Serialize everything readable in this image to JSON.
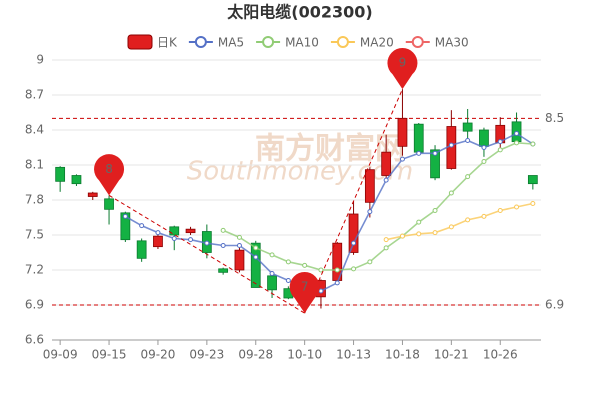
{
  "chart_data": {
    "type": "candlestick",
    "title": "太阳电缆(002300)",
    "watermark": [
      "南方财富网",
      "Southmoney.com"
    ],
    "categories": [
      "09-09",
      null,
      null,
      "09-15",
      null,
      null,
      "09-20",
      null,
      null,
      "09-23",
      null,
      null,
      "09-28",
      null,
      null,
      "10-10",
      null,
      null,
      "10-13",
      null,
      null,
      "10-18",
      null,
      null,
      "10-21",
      null,
      null,
      "10-26",
      null,
      null
    ],
    "candles": {
      "name": "日K",
      "up_color": "#e01f1f",
      "down_color": "#14b143",
      "open": [
        8.08,
        8.01,
        7.83,
        7.81,
        7.69,
        7.45,
        7.4,
        7.57,
        7.52,
        7.53,
        7.21,
        7.2,
        7.43,
        7.15,
        7.04,
        7.03,
        6.97,
        7.11,
        7.35,
        7.78,
        8.01,
        8.26,
        8.45,
        8.23,
        8.07,
        8.46,
        8.4,
        8.29,
        8.47,
        8.01
      ],
      "high": [
        8.09,
        8.02,
        7.87,
        7.84,
        7.7,
        7.47,
        7.5,
        7.58,
        7.57,
        7.59,
        7.22,
        7.42,
        7.45,
        7.17,
        7.06,
        7.08,
        7.12,
        7.44,
        7.79,
        8.08,
        8.36,
        8.75,
        8.46,
        8.27,
        8.57,
        8.58,
        8.42,
        8.51,
        8.55,
        8.01
      ],
      "low": [
        7.87,
        7.92,
        7.8,
        7.59,
        7.44,
        7.27,
        7.38,
        7.37,
        7.5,
        7.3,
        7.16,
        7.18,
        7.05,
        6.96,
        6.95,
        6.83,
        6.87,
        7.08,
        7.33,
        7.65,
        7.98,
        8.18,
        8.2,
        7.97,
        8.06,
        8.31,
        8.17,
        8.24,
        8.29,
        7.89
      ],
      "close": [
        7.96,
        7.94,
        7.86,
        7.72,
        7.46,
        7.3,
        7.49,
        7.5,
        7.55,
        7.35,
        7.18,
        7.37,
        7.05,
        7.03,
        6.96,
        6.98,
        7.11,
        7.43,
        7.68,
        8.06,
        8.21,
        8.5,
        8.21,
        7.99,
        8.43,
        8.39,
        8.26,
        8.44,
        8.3,
        7.94
      ]
    },
    "series": [
      {
        "name": "MA5",
        "color": "#5470c6",
        "values": [
          null,
          null,
          null,
          null,
          7.66,
          7.58,
          7.52,
          7.47,
          7.46,
          7.43,
          7.41,
          7.41,
          7.31,
          7.17,
          7.11,
          7.03,
          7.02,
          7.09,
          7.43,
          7.7,
          7.97,
          8.15,
          8.2,
          8.2,
          8.27,
          8.31,
          8.25,
          8.3,
          8.37,
          8.28
        ]
      },
      {
        "name": "MA10",
        "color": "#91cc75",
        "values": [
          null,
          null,
          null,
          null,
          null,
          null,
          null,
          null,
          null,
          null,
          7.54,
          7.48,
          7.39,
          7.33,
          7.27,
          7.24,
          7.2,
          7.2,
          7.21,
          7.27,
          7.39,
          7.49,
          7.61,
          7.71,
          7.86,
          8.0,
          8.13,
          8.23,
          8.29,
          8.28
        ]
      },
      {
        "name": "MA20",
        "color": "#fac858",
        "values": [
          null,
          null,
          null,
          null,
          null,
          null,
          null,
          null,
          null,
          null,
          null,
          null,
          null,
          null,
          null,
          null,
          null,
          null,
          null,
          null,
          7.46,
          7.49,
          7.51,
          7.52,
          7.57,
          7.63,
          7.66,
          7.71,
          7.74,
          7.77
        ]
      },
      {
        "name": "MA30",
        "color": "#ee6666",
        "values": [
          null,
          null,
          null,
          null,
          null,
          null,
          null,
          null,
          null,
          null,
          null,
          null,
          null,
          null,
          null,
          null,
          null,
          null,
          null,
          null,
          null,
          null,
          null,
          null,
          null,
          null,
          null,
          null,
          null,
          null
        ]
      }
    ],
    "ref_lines": [
      8.5,
      6.9
    ],
    "annotations": [
      {
        "label": "8",
        "category": "09-15",
        "anchor": "high"
      },
      {
        "label": "7",
        "category": "10-10",
        "anchor": "low"
      },
      {
        "label": "9",
        "category": "10-18",
        "anchor": "high"
      }
    ],
    "ylim": [
      6.6,
      9
    ],
    "yticks": [
      9,
      8.7,
      8.4,
      8.1,
      7.8,
      7.5,
      7.2,
      6.9,
      6.6
    ],
    "grid": true
  }
}
